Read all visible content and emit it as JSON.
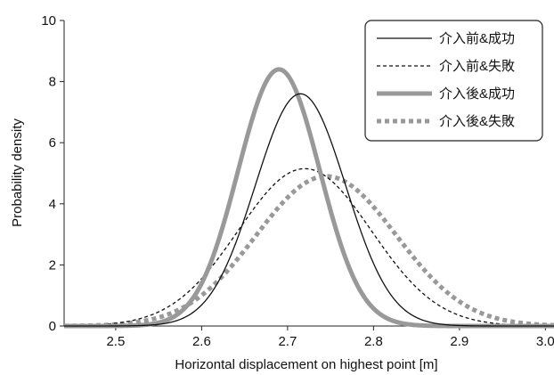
{
  "chart_data": {
    "type": "line",
    "xlabel": "Horizontal displacement on highest point [m]",
    "ylabel": "Probability density",
    "xlim": [
      2.44,
      3.01
    ],
    "ylim": [
      0,
      10
    ],
    "x_ticks": [
      "2.5",
      "2.6",
      "2.7",
      "2.8",
      "2.9",
      "3.0"
    ],
    "x_tick_values": [
      2.5,
      2.6,
      2.7,
      2.8,
      2.9,
      3.0
    ],
    "y_ticks": [
      "0",
      "2",
      "4",
      "6",
      "8",
      "10"
    ],
    "y_tick_values": [
      0,
      2,
      4,
      6,
      8,
      10
    ],
    "grid": false,
    "legend_position": "top-right",
    "series": [
      {
        "name": "介入前&成功",
        "mean": 2.715,
        "peak": 7.6,
        "color": "#111111",
        "style": "solid-thin"
      },
      {
        "name": "介入前&失敗",
        "mean": 2.72,
        "peak": 5.15,
        "color": "#111111",
        "style": "dashed-thin"
      },
      {
        "name": "介入後&成功",
        "mean": 2.69,
        "peak": 8.4,
        "color": "#999999",
        "style": "solid-thick"
      },
      {
        "name": "介入後&失敗",
        "mean": 2.745,
        "peak": 4.9,
        "color": "#999999",
        "style": "dotted-thick"
      }
    ]
  }
}
